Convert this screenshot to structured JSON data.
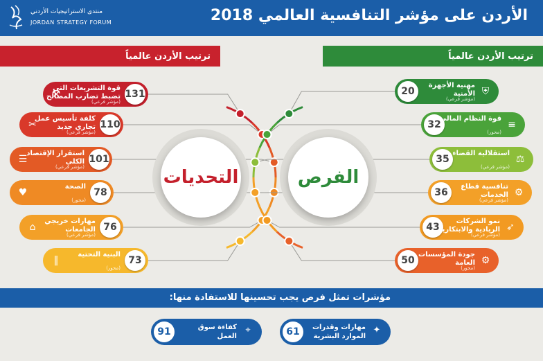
{
  "header": {
    "title": "الأردن على مؤشر التنافسية العالمي 2018",
    "logo_ar": "منتدى الاستراتيجيات الأردني",
    "logo_en": "JORDAN STRATEGY FORUM"
  },
  "ribbons": {
    "left": "ترتيب الأردن عالمياً",
    "right": "ترتيب الأردن عالمياً"
  },
  "centers": {
    "challenges": "التحديات",
    "opportunities": "الفرص"
  },
  "challenges": [
    {
      "rank": "131",
      "label1": "قوة التشريعات التي",
      "label2": "تضبط تضارب المصالح",
      "sub": "(مؤشر فرعي)",
      "color": "#c4202c"
    },
    {
      "rank": "110",
      "label1": "كلفة تأسيس عمل",
      "label2": "تجاري جديد",
      "sub": "(مؤشر فرعي)",
      "color": "#d9392a"
    },
    {
      "rank": "101",
      "label1": "استقرار الإقتصاد",
      "label2": "الكلي",
      "sub": "(مؤشر فرعي)",
      "color": "#e35a25"
    },
    {
      "rank": "78",
      "label1": "الصحة",
      "label2": "",
      "sub": "(محور)",
      "color": "#ef8a24"
    },
    {
      "rank": "76",
      "label1": "مهارات خريجي",
      "label2": "الجامعات",
      "sub": "(مؤشر فرعي)",
      "color": "#f3a028"
    },
    {
      "rank": "73",
      "label1": "البنية التحتية",
      "label2": "",
      "sub": "(محور)",
      "color": "#f6b82c"
    }
  ],
  "opportunities": [
    {
      "rank": "20",
      "label1": "مهنية الأجهزة",
      "label2": "الأمنية",
      "sub": "(مؤشر فرعي)",
      "color": "#2e8b3a"
    },
    {
      "rank": "32",
      "label1": "قوة النظام المالي",
      "label2": "",
      "sub": "(محور)",
      "color": "#4aa33a"
    },
    {
      "rank": "35",
      "label1": "استقلالية القضاء",
      "label2": "",
      "sub": "(مؤشر فرعي)",
      "color": "#8dbe3a"
    },
    {
      "rank": "36",
      "label1": "تنافسية قطاع",
      "label2": "الخدمات",
      "sub": "(مؤشر فرعي)",
      "color": "#f3a028"
    },
    {
      "rank": "43",
      "label1": "نمو الشركات",
      "label2": "الريادية والابتكارية",
      "sub": "(مؤشر فرعي)",
      "color": "#f29a22"
    },
    {
      "rank": "50",
      "label1": "جودة المؤسسات",
      "label2": "العامة",
      "sub": "(محور)",
      "color": "#e8612a"
    }
  ],
  "bottom": {
    "title": "مؤشرات تمثل فرص يجب تحسينها للاستفادة منها:",
    "items": [
      {
        "rank": "91",
        "label1": "كفاءة سوق",
        "label2": "العمل"
      },
      {
        "rank": "61",
        "label1": "مهارات وقدرات",
        "label2": "الموارد البشرية"
      }
    ]
  },
  "icons": {
    "challenges": [
      "gavel-icon",
      "tools-icon",
      "document-icon",
      "heart-icon",
      "graduation-cap-icon",
      "road-icon"
    ],
    "opportunities": [
      "shield-icon",
      "money-stack-icon",
      "scales-icon",
      "gear-hand-icon",
      "rocket-icon",
      "building-gear-icon"
    ],
    "bottom": [
      "location-pin-icon",
      "people-network-icon"
    ]
  }
}
